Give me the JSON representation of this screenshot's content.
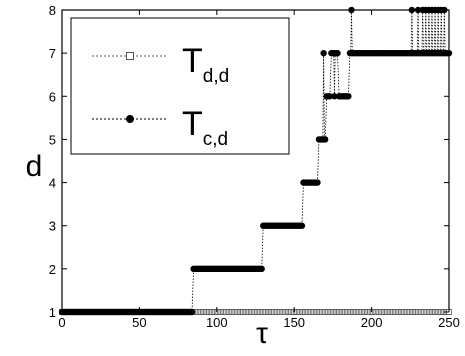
{
  "chart_data": {
    "type": "scatter",
    "xlabel": "τ",
    "ylabel": "d",
    "xlim": [
      0,
      250
    ],
    "ylim": [
      1,
      8
    ],
    "xticks": [
      "0",
      "50",
      "100",
      "150",
      "200",
      "250"
    ],
    "yticks": [
      "1",
      "2",
      "3",
      "4",
      "5",
      "6",
      "7",
      "8"
    ],
    "grid": false,
    "legend_placement": "top-left",
    "series": [
      {
        "name_main": "T",
        "name_sub": "d,d",
        "marker": "open-square",
        "line": "dotted",
        "color": "#555555",
        "points": [
          [
            0,
            1
          ],
          [
            250,
            1
          ]
        ]
      },
      {
        "name_main": "T",
        "name_sub": "c,d",
        "marker": "filled-circle",
        "line": "dotted",
        "color": "#000000",
        "segments": [
          {
            "x_start": 0,
            "x_end": 84,
            "y": 1
          },
          {
            "x_start": 85,
            "x_end": 129,
            "y": 2
          },
          {
            "x_start": 130,
            "x_end": 155,
            "y": 3
          },
          {
            "x_start": 156,
            "x_end": 165,
            "y": 4
          },
          {
            "x_start": 166,
            "x_end": 170,
            "y": 5
          },
          {
            "x_start": 171,
            "x_end": 173,
            "y": 6
          },
          {
            "x_start": 174,
            "x_end": 178,
            "y": 7
          },
          {
            "x_start": 179,
            "x_end": 185,
            "y": 6
          },
          {
            "x_start": 186,
            "x_end": 250,
            "y": 7
          }
        ],
        "spikes": [
          {
            "x": 169,
            "y": 7
          },
          {
            "x": 176,
            "y": 6
          },
          {
            "x": 187,
            "y": 8
          },
          {
            "x": 226,
            "y": 8
          },
          {
            "x": 230,
            "y": 8
          },
          {
            "x": 233,
            "y": 8
          },
          {
            "x": 235,
            "y": 8
          },
          {
            "x": 237,
            "y": 8
          },
          {
            "x": 239,
            "y": 8
          },
          {
            "x": 241,
            "y": 8
          },
          {
            "x": 243,
            "y": 8
          },
          {
            "x": 245,
            "y": 8
          },
          {
            "x": 247,
            "y": 8
          }
        ]
      }
    ]
  }
}
